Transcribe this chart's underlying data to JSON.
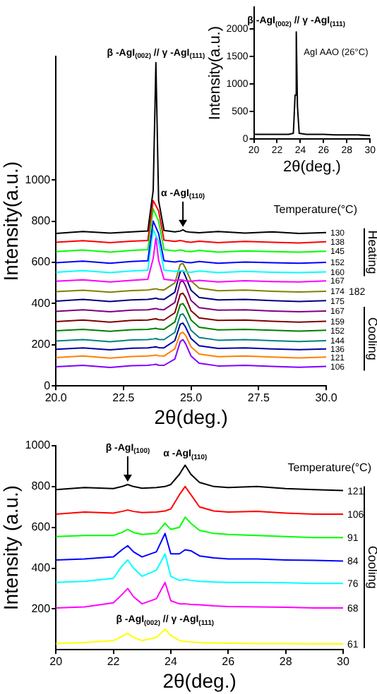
{
  "chart_data": [
    {
      "type": "line",
      "xlabel": "2θ(deg.)",
      "ylabel": "Intensity(a.u.)",
      "xlim": [
        20,
        30
      ],
      "xticks": [
        20,
        22,
        24,
        26,
        28,
        30
      ],
      "ylim": [
        0,
        2400
      ],
      "yticks": [
        0,
        500,
        1000,
        1500,
        2000
      ],
      "grid": false,
      "legend": false,
      "x": [
        20,
        21,
        22,
        23,
        23.4,
        23.55,
        23.65,
        23.75,
        23.9,
        24.5,
        25,
        26,
        27,
        28,
        29,
        30
      ],
      "series": [
        {
          "color": "#000000",
          "values": [
            80,
            80,
            80,
            80,
            100,
            800,
            1950,
            600,
            100,
            80,
            80,
            80,
            70,
            70,
            70,
            60
          ]
        }
      ],
      "annotations": [
        {
          "text": "β -AgI$_{(002)}$ // γ -AgI$_{(111)}$",
          "x": 23.65,
          "y": 1950
        },
        "AgI AAO (26°C)"
      ]
    },
    {
      "type": "line",
      "xlabel": "2θ(deg.)",
      "ylabel": "Intensity(a.u.)",
      "xlim": [
        20,
        30
      ],
      "xticks": [
        {
          "value": 20,
          "label": "20.0"
        },
        {
          "value": 22.5,
          "label": "22.5"
        },
        {
          "value": 25,
          "label": "25.0"
        },
        {
          "value": 27.5,
          "label": "27.5"
        },
        {
          "value": 30,
          "label": "30.0"
        }
      ],
      "ylim": [
        0,
        1600
      ],
      "yticks": [
        0,
        200,
        400,
        600,
        800,
        1000
      ],
      "grid": false,
      "legend": false,
      "x": [
        20,
        21,
        22,
        22.8,
        23.4,
        23.6,
        23.7,
        23.8,
        24,
        24.4,
        24.6,
        24.7,
        24.8,
        25,
        25.3,
        26,
        27,
        28,
        29,
        30
      ],
      "series": [
        {
          "name": "130",
          "color": "#000000",
          "values": [
            740,
            750,
            742,
            748,
            752,
            950,
            1570,
            900,
            755,
            748,
            752,
            758,
            750,
            746,
            744,
            750,
            742,
            748,
            740,
            745
          ]
        },
        {
          "name": "138",
          "color": "#ff0000",
          "values": [
            698,
            705,
            696,
            703,
            706,
            900,
            null,
            850,
            708,
            702,
            706,
            704,
            700,
            698,
            703,
            696,
            702,
            698,
            694,
            700
          ]
        },
        {
          "name": "145",
          "color": "#00ff00",
          "values": [
            652,
            660,
            650,
            658,
            662,
            860,
            null,
            800,
            662,
            656,
            660,
            658,
            654,
            652,
            658,
            650,
            656,
            652,
            650,
            654
          ]
        },
        {
          "name": "152",
          "color": "#0000ff",
          "values": [
            598,
            606,
            596,
            604,
            608,
            800,
            null,
            740,
            608,
            602,
            606,
            604,
            600,
            598,
            604,
            596,
            602,
            598,
            596,
            600
          ]
        },
        {
          "name": "160",
          "color": "#00ffff",
          "values": [
            552,
            560,
            550,
            558,
            562,
            760,
            null,
            700,
            562,
            556,
            560,
            558,
            554,
            552,
            558,
            550,
            556,
            552,
            550,
            554
          ]
        },
        {
          "name": "167",
          "color": "#ff00ff",
          "values": [
            508,
            515,
            505,
            513,
            518,
            620,
            720,
            610,
            518,
            512,
            515,
            514,
            510,
            508,
            513,
            505,
            511,
            507,
            505,
            510
          ]
        },
        {
          "name": "174",
          "color": "#808000",
          "values": [
            458,
            465,
            455,
            463,
            466,
            470,
            472,
            468,
            466,
            500,
            590,
            595,
            570,
            510,
            475,
            462,
            466,
            460,
            456,
            460
          ]
        },
        {
          "name": "175",
          "color": "#000080",
          "values": [
            412,
            420,
            410,
            418,
            420,
            424,
            426,
            422,
            420,
            455,
            555,
            560,
            530,
            465,
            430,
            418,
            420,
            414,
            410,
            414
          ]
        },
        {
          "name": "167",
          "color": "#800080",
          "values": [
            362,
            370,
            360,
            368,
            370,
            374,
            376,
            372,
            370,
            405,
            505,
            510,
            485,
            415,
            380,
            368,
            370,
            364,
            360,
            364
          ]
        },
        {
          "name": "159",
          "color": "#800000",
          "values": [
            312,
            320,
            310,
            318,
            320,
            324,
            326,
            322,
            320,
            355,
            445,
            450,
            430,
            365,
            330,
            318,
            320,
            314,
            310,
            314
          ]
        },
        {
          "name": "152",
          "color": "#008000",
          "values": [
            268,
            275,
            265,
            273,
            275,
            278,
            280,
            276,
            275,
            310,
            395,
            400,
            380,
            320,
            285,
            272,
            275,
            270,
            266,
            270
          ]
        },
        {
          "name": "144",
          "color": "#008080",
          "values": [
            218,
            225,
            215,
            223,
            225,
            228,
            230,
            226,
            225,
            260,
            345,
            350,
            330,
            270,
            235,
            222,
            225,
            220,
            216,
            220
          ]
        },
        {
          "name": "136",
          "color": "#0000a0",
          "values": [
            178,
            185,
            175,
            183,
            185,
            188,
            190,
            186,
            185,
            220,
            300,
            305,
            285,
            230,
            195,
            182,
            185,
            180,
            176,
            180
          ]
        },
        {
          "name": "121",
          "color": "#ff8000",
          "values": [
            138,
            145,
            135,
            143,
            145,
            148,
            150,
            146,
            145,
            180,
            255,
            260,
            245,
            190,
            155,
            142,
            145,
            140,
            136,
            140
          ]
        },
        {
          "name": "106",
          "color": "#8000ff",
          "values": [
            93,
            100,
            90,
            98,
            100,
            103,
            105,
            101,
            100,
            130,
            215,
            225,
            205,
            145,
            110,
            97,
            100,
            95,
            91,
            95
          ]
        }
      ],
      "annotations": [
        {
          "text": "β -AgI$_{(002)}$ // γ -AgI$_{(111)}$",
          "x": 23.7,
          "y": 1570
        },
        {
          "text": "α -AgI$_{(110)}$",
          "x": 24.7,
          "y": 758
        },
        "Temperature(°C)",
        "182",
        "Heating",
        "Cooling"
      ]
    },
    {
      "type": "line",
      "xlabel": "2θ(deg.)",
      "ylabel": "Intensity (a.u.)",
      "xlim": [
        20,
        30
      ],
      "xticks": [
        20,
        22,
        24,
        26,
        28,
        30
      ],
      "ylim": [
        0,
        1000
      ],
      "yticks": [
        200,
        400,
        600,
        800,
        1000
      ],
      "grid": false,
      "legend": false,
      "x": [
        20,
        21,
        22,
        22.3,
        22.5,
        22.7,
        23,
        23.5,
        23.8,
        24,
        24.3,
        24.5,
        24.7,
        25,
        25.5,
        26,
        27,
        28,
        29,
        30
      ],
      "series": [
        {
          "name": "121",
          "color": "#000000",
          "values": [
            785,
            795,
            790,
            800,
            810,
            800,
            792,
            795,
            800,
            810,
            860,
            905,
            860,
            820,
            800,
            795,
            800,
            790,
            785,
            780
          ]
        },
        {
          "name": "106",
          "color": "#ff0000",
          "values": [
            665,
            675,
            670,
            678,
            685,
            678,
            672,
            675,
            680,
            690,
            760,
            800,
            760,
            700,
            680,
            675,
            678,
            670,
            665,
            665
          ]
        },
        {
          "name": "91",
          "color": "#00ff00",
          "values": [
            555,
            560,
            560,
            575,
            590,
            575,
            565,
            570,
            620,
            590,
            600,
            650,
            620,
            585,
            570,
            565,
            560,
            555,
            550,
            550
          ]
        },
        {
          "name": "84",
          "color": "#0000ff",
          "values": [
            440,
            445,
            455,
            490,
            510,
            480,
            455,
            480,
            570,
            470,
            470,
            490,
            485,
            460,
            450,
            445,
            445,
            440,
            438,
            435
          ]
        },
        {
          "name": "76",
          "color": "#00ffff",
          "values": [
            330,
            335,
            350,
            410,
            440,
            400,
            360,
            390,
            470,
            360,
            340,
            345,
            340,
            335,
            332,
            330,
            330,
            328,
            325,
            325
          ]
        },
        {
          "name": "68",
          "color": "#ff00ff",
          "values": [
            205,
            210,
            230,
            270,
            300,
            260,
            225,
            250,
            330,
            240,
            225,
            225,
            222,
            220,
            215,
            212,
            210,
            208,
            205,
            205
          ]
        },
        {
          "name": "61",
          "color": "#ffff00",
          "values": [
            30,
            35,
            45,
            65,
            80,
            60,
            45,
            60,
            100,
            70,
            45,
            40,
            38,
            35,
            33,
            32,
            30,
            30,
            28,
            28
          ]
        }
      ],
      "annotations": [
        {
          "text": "β -AgI$_{(100)}$",
          "x": 22.5,
          "y": 810
        },
        {
          "text": "α -AgI$_{(110)}$",
          "x": 24.5,
          "y": 905
        },
        {
          "text": "β -AgI$_{(002)}$ // γ -AgI$_{(111)}$",
          "x": 23.8,
          "y": 100
        },
        "Temperature(°C)",
        "Cooling"
      ]
    }
  ]
}
